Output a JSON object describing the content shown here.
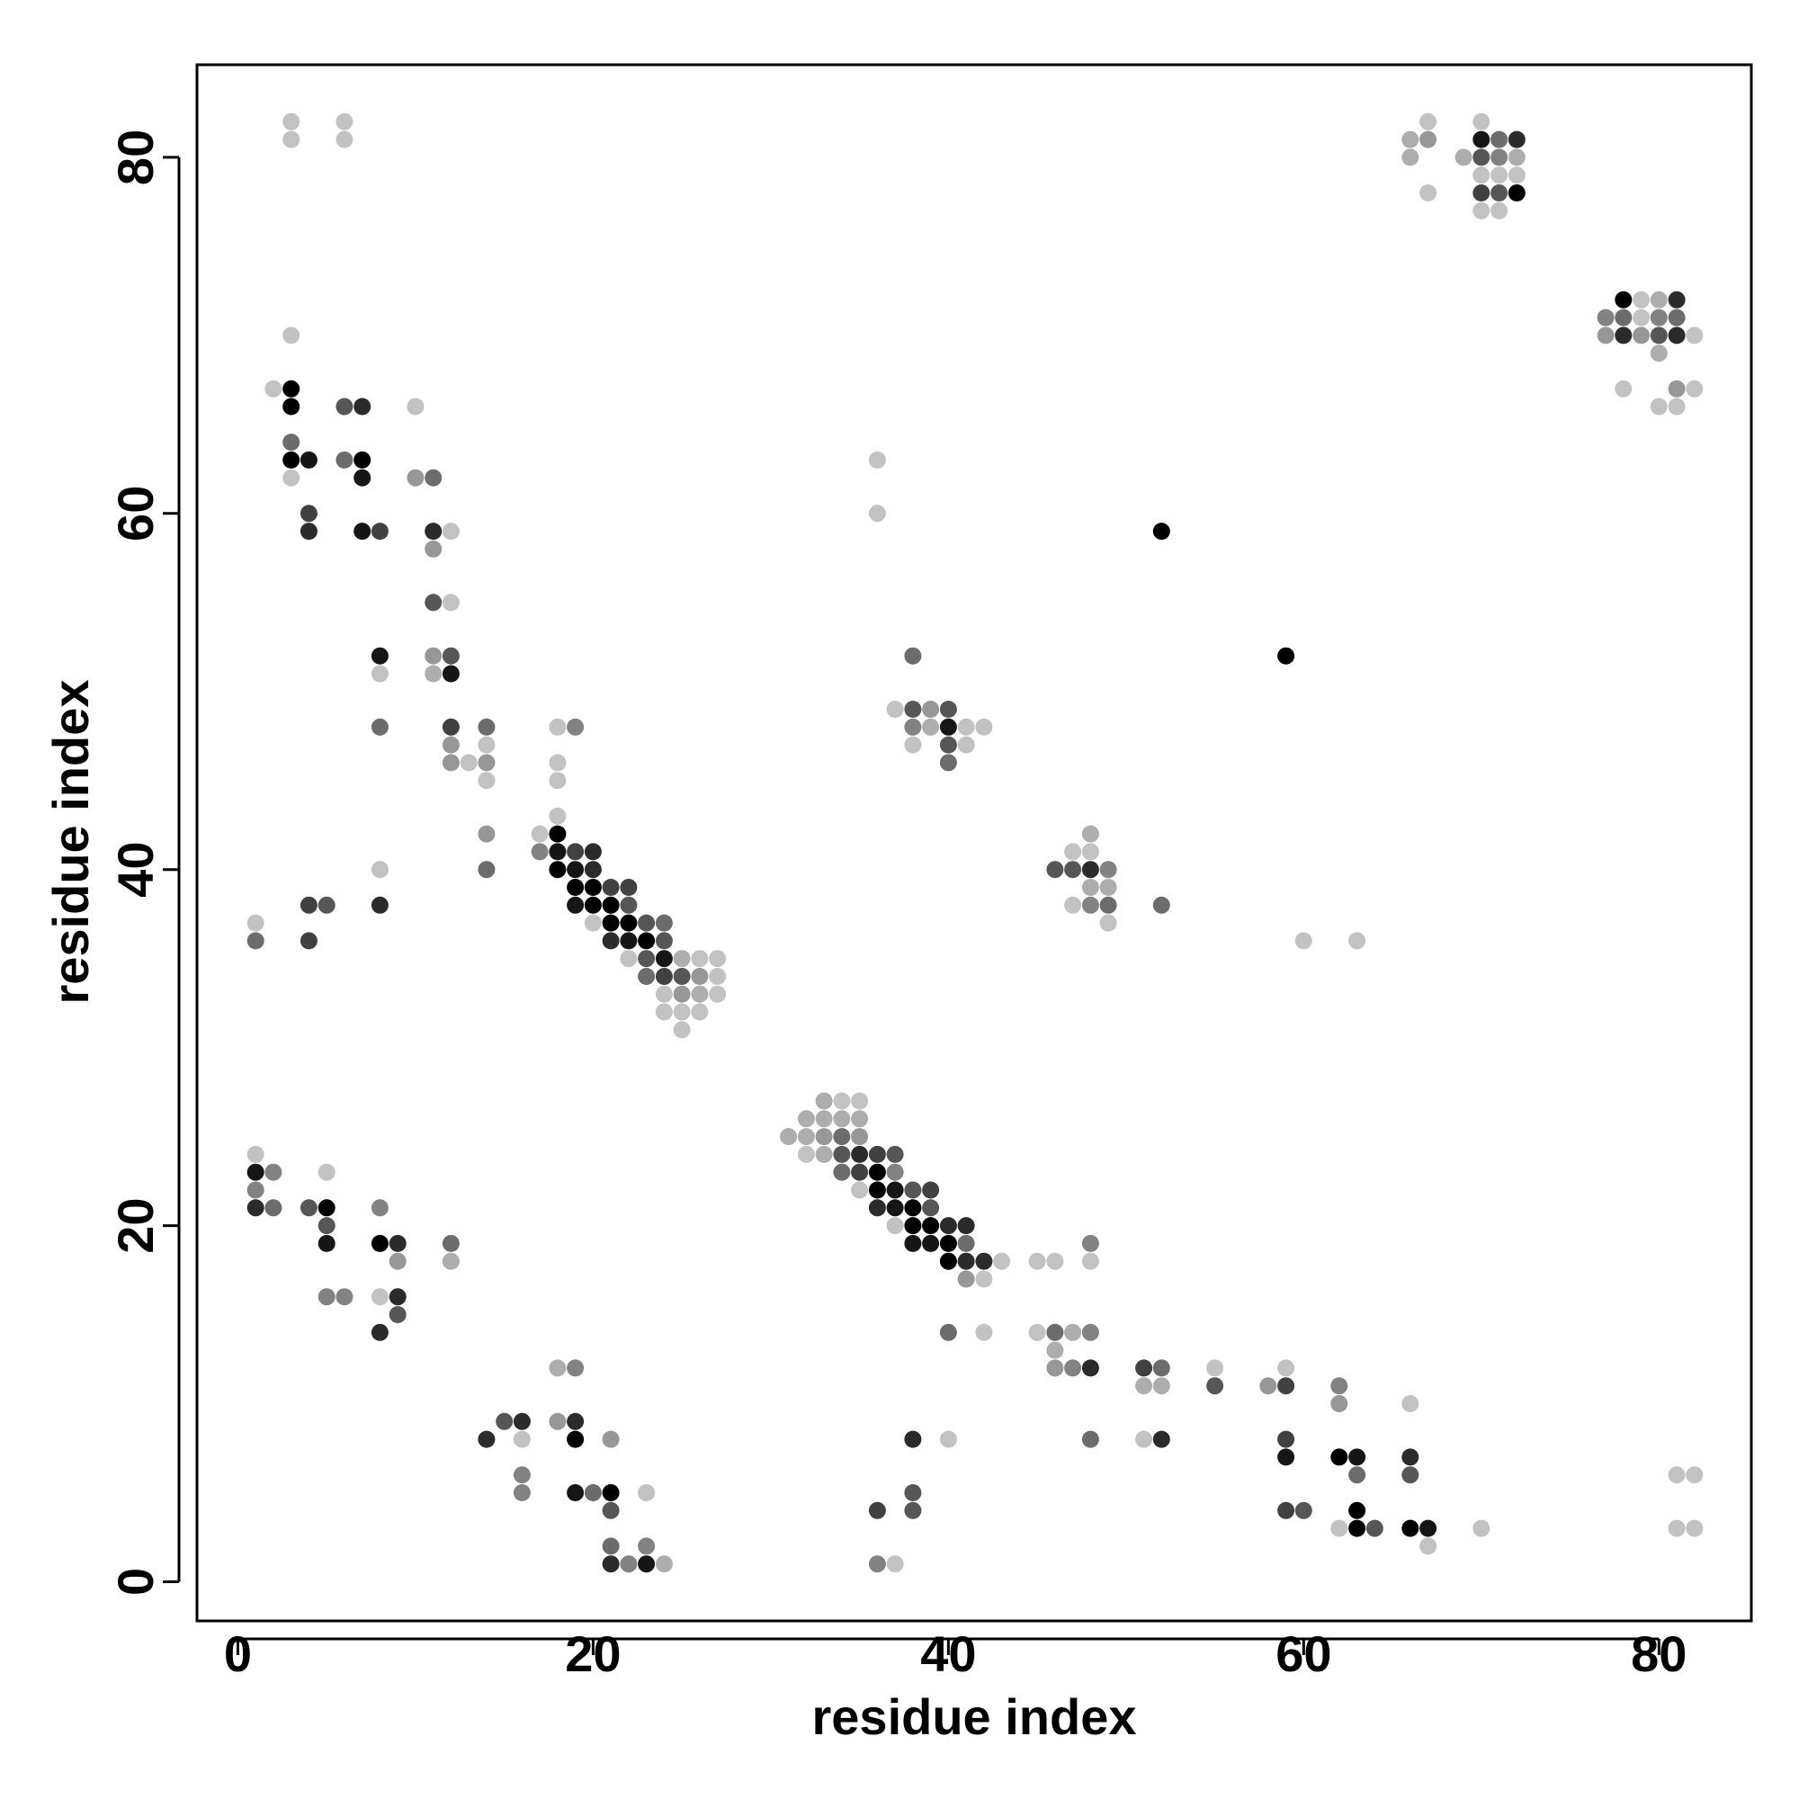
{
  "chart_data": {
    "type": "scatter",
    "title": "",
    "xlabel": "residue index",
    "ylabel": "residue index",
    "xlim": [
      -2.3,
      85.2
    ],
    "ylim": [
      -2.2,
      85.2
    ],
    "xticks": [
      0,
      20,
      40,
      60,
      80
    ],
    "yticks": [
      0,
      20,
      40,
      60,
      80
    ],
    "xtick_labels": [
      "0",
      "20",
      "40",
      "60",
      "80"
    ],
    "ytick_labels": [
      "0",
      "20",
      "40",
      "60",
      "80"
    ],
    "grid": false,
    "legend": "none",
    "color_scale": "grayscale: 0 = light gray (#d8d8d8), 1 = black",
    "points": [
      [
        3,
        82,
        0.1
      ],
      [
        3,
        81,
        0.1
      ],
      [
        6,
        82,
        0.1
      ],
      [
        6,
        81,
        0.1
      ],
      [
        67,
        82,
        0.1
      ],
      [
        66,
        81,
        0.2
      ],
      [
        67,
        81,
        0.3
      ],
      [
        66,
        80,
        0.2
      ],
      [
        67,
        78,
        0.1
      ],
      [
        70,
        82,
        0.1
      ],
      [
        69,
        80,
        0.2
      ],
      [
        70,
        81,
        0.9
      ],
      [
        71,
        81,
        0.5
      ],
      [
        72,
        81,
        0.8
      ],
      [
        70,
        80,
        0.6
      ],
      [
        71,
        80,
        0.4
      ],
      [
        72,
        80,
        0.2
      ],
      [
        70,
        79,
        0.1
      ],
      [
        71,
        79,
        0.1
      ],
      [
        72,
        79,
        0.1
      ],
      [
        70,
        78,
        0.7
      ],
      [
        71,
        78,
        0.6
      ],
      [
        72,
        78,
        1.0
      ],
      [
        70,
        77,
        0.1
      ],
      [
        71,
        77,
        0.1
      ],
      [
        78,
        72,
        1.0
      ],
      [
        79,
        72,
        0.1
      ],
      [
        80,
        72,
        0.2
      ],
      [
        81,
        72,
        0.8
      ],
      [
        77,
        71,
        0.4
      ],
      [
        78,
        71,
        0.5
      ],
      [
        79,
        71,
        0.1
      ],
      [
        80,
        71,
        0.4
      ],
      [
        81,
        71,
        0.5
      ],
      [
        77,
        70,
        0.3
      ],
      [
        78,
        70,
        0.8
      ],
      [
        79,
        70,
        0.3
      ],
      [
        80,
        70,
        0.6
      ],
      [
        81,
        70,
        0.8
      ],
      [
        82,
        70,
        0.1
      ],
      [
        80,
        69,
        0.2
      ],
      [
        78,
        67,
        0.1
      ],
      [
        81,
        67,
        0.3
      ],
      [
        82,
        67,
        0.1
      ],
      [
        80,
        66,
        0.1
      ],
      [
        81,
        66,
        0.1
      ],
      [
        3,
        70,
        0.1
      ],
      [
        2,
        67,
        0.1
      ],
      [
        3,
        67,
        1.0
      ],
      [
        3,
        66,
        1.0
      ],
      [
        6,
        66,
        0.6
      ],
      [
        7,
        66,
        0.8
      ],
      [
        3,
        64,
        0.5
      ],
      [
        3,
        63,
        1.0
      ],
      [
        4,
        63,
        0.9
      ],
      [
        6,
        63,
        0.5
      ],
      [
        7,
        63,
        1.0
      ],
      [
        3,
        62,
        0.1
      ],
      [
        7,
        62,
        0.9
      ],
      [
        10,
        66,
        0.1
      ],
      [
        10,
        62,
        0.3
      ],
      [
        11,
        62,
        0.5
      ],
      [
        4,
        60,
        0.7
      ],
      [
        4,
        59,
        0.8
      ],
      [
        7,
        59,
        0.9
      ],
      [
        8,
        59,
        0.7
      ],
      [
        11,
        59,
        0.8
      ],
      [
        12,
        59,
        0.1
      ],
      [
        11,
        58,
        0.3
      ],
      [
        11,
        55,
        0.6
      ],
      [
        12,
        55,
        0.1
      ],
      [
        8,
        52,
        0.9
      ],
      [
        11,
        52,
        0.3
      ],
      [
        12,
        52,
        0.6
      ],
      [
        8,
        51,
        0.1
      ],
      [
        11,
        51,
        0.2
      ],
      [
        12,
        51,
        0.9
      ],
      [
        8,
        48,
        0.5
      ],
      [
        12,
        48,
        0.7
      ],
      [
        14,
        48,
        0.5
      ],
      [
        12,
        47,
        0.3
      ],
      [
        14,
        47,
        0.1
      ],
      [
        12,
        46,
        0.3
      ],
      [
        13,
        46,
        0.1
      ],
      [
        14,
        46,
        0.3
      ],
      [
        14,
        45,
        0.1
      ],
      [
        14,
        42,
        0.3
      ],
      [
        14,
        40,
        0.5
      ],
      [
        8,
        40,
        0.1
      ],
      [
        4,
        38,
        0.7
      ],
      [
        5,
        38,
        0.6
      ],
      [
        8,
        38,
        0.8
      ],
      [
        1,
        37,
        0.1
      ],
      [
        1,
        36,
        0.5
      ],
      [
        4,
        36,
        0.7
      ],
      [
        18,
        48,
        0.1
      ],
      [
        19,
        48,
        0.4
      ],
      [
        18,
        46,
        0.1
      ],
      [
        18,
        45,
        0.1
      ],
      [
        18,
        43,
        0.1
      ],
      [
        17,
        42,
        0.1
      ],
      [
        18,
        42,
        1.0
      ],
      [
        17,
        41,
        0.4
      ],
      [
        18,
        41,
        0.9
      ],
      [
        19,
        41,
        0.7
      ],
      [
        20,
        41,
        0.8
      ],
      [
        18,
        40,
        1.0
      ],
      [
        19,
        40,
        0.9
      ],
      [
        20,
        40,
        0.8
      ],
      [
        19,
        39,
        1.0
      ],
      [
        20,
        39,
        1.0
      ],
      [
        21,
        39,
        0.7
      ],
      [
        22,
        39,
        0.7
      ],
      [
        19,
        38,
        0.9
      ],
      [
        20,
        38,
        1.0
      ],
      [
        21,
        38,
        1.0
      ],
      [
        22,
        38,
        0.6
      ],
      [
        20,
        37,
        0.1
      ],
      [
        21,
        37,
        1.0
      ],
      [
        22,
        37,
        1.0
      ],
      [
        23,
        37,
        0.6
      ],
      [
        24,
        37,
        0.5
      ],
      [
        21,
        36,
        0.8
      ],
      [
        22,
        36,
        0.9
      ],
      [
        23,
        36,
        1.0
      ],
      [
        24,
        36,
        0.6
      ],
      [
        22,
        35,
        0.1
      ],
      [
        23,
        35,
        0.6
      ],
      [
        24,
        35,
        0.9
      ],
      [
        25,
        35,
        0.2
      ],
      [
        26,
        35,
        0.1
      ],
      [
        27,
        35,
        0.1
      ],
      [
        23,
        34,
        0.5
      ],
      [
        24,
        34,
        0.7
      ],
      [
        25,
        34,
        0.6
      ],
      [
        26,
        34,
        0.3
      ],
      [
        27,
        34,
        0.1
      ],
      [
        24,
        33,
        0.1
      ],
      [
        25,
        33,
        0.3
      ],
      [
        26,
        33,
        0.2
      ],
      [
        27,
        33,
        0.1
      ],
      [
        24,
        32,
        0.1
      ],
      [
        25,
        32,
        0.1
      ],
      [
        26,
        32,
        0.1
      ],
      [
        25,
        31,
        0.1
      ],
      [
        36,
        63,
        0.1
      ],
      [
        36,
        60,
        0.1
      ],
      [
        52,
        59,
        1.0
      ],
      [
        59,
        52,
        1.0
      ],
      [
        38,
        52,
        0.5
      ],
      [
        37,
        49,
        0.1
      ],
      [
        38,
        49,
        0.6
      ],
      [
        39,
        49,
        0.3
      ],
      [
        40,
        49,
        0.6
      ],
      [
        38,
        48,
        0.4
      ],
      [
        39,
        48,
        0.2
      ],
      [
        40,
        48,
        0.9
      ],
      [
        41,
        48,
        0.1
      ],
      [
        42,
        48,
        0.1
      ],
      [
        38,
        47,
        0.1
      ],
      [
        40,
        47,
        0.6
      ],
      [
        41,
        47,
        0.1
      ],
      [
        40,
        46,
        0.5
      ],
      [
        48,
        42,
        0.2
      ],
      [
        47,
        41,
        0.1
      ],
      [
        48,
        41,
        0.1
      ],
      [
        46,
        40,
        0.6
      ],
      [
        47,
        40,
        0.6
      ],
      [
        48,
        40,
        0.8
      ],
      [
        49,
        40,
        0.4
      ],
      [
        48,
        39,
        0.2
      ],
      [
        49,
        39,
        0.2
      ],
      [
        47,
        38,
        0.1
      ],
      [
        48,
        38,
        0.4
      ],
      [
        49,
        38,
        0.5
      ],
      [
        49,
        37,
        0.1
      ],
      [
        52,
        38,
        0.5
      ],
      [
        60,
        36,
        0.1
      ],
      [
        63,
        36,
        0.1
      ],
      [
        33,
        27,
        0.2
      ],
      [
        34,
        27,
        0.1
      ],
      [
        35,
        27,
        0.1
      ],
      [
        32,
        26,
        0.2
      ],
      [
        33,
        26,
        0.2
      ],
      [
        34,
        26,
        0.2
      ],
      [
        35,
        26,
        0.2
      ],
      [
        31,
        25,
        0.2
      ],
      [
        32,
        25,
        0.2
      ],
      [
        33,
        25,
        0.3
      ],
      [
        34,
        25,
        0.5
      ],
      [
        35,
        25,
        0.3
      ],
      [
        32,
        24,
        0.1
      ],
      [
        33,
        24,
        0.2
      ],
      [
        34,
        24,
        0.6
      ],
      [
        35,
        24,
        0.8
      ],
      [
        36,
        24,
        0.7
      ],
      [
        37,
        24,
        0.6
      ],
      [
        34,
        23,
        0.5
      ],
      [
        35,
        23,
        0.7
      ],
      [
        36,
        23,
        1.0
      ],
      [
        37,
        23,
        0.4
      ],
      [
        35,
        22,
        0.1
      ],
      [
        36,
        22,
        1.0
      ],
      [
        37,
        22,
        0.9
      ],
      [
        38,
        22,
        0.6
      ],
      [
        39,
        22,
        0.7
      ],
      [
        36,
        21,
        0.8
      ],
      [
        37,
        21,
        0.9
      ],
      [
        38,
        21,
        1.0
      ],
      [
        39,
        21,
        0.6
      ],
      [
        37,
        20,
        0.1
      ],
      [
        38,
        20,
        1.0
      ],
      [
        39,
        20,
        1.0
      ],
      [
        40,
        20,
        0.8
      ],
      [
        41,
        20,
        0.8
      ],
      [
        38,
        19,
        0.9
      ],
      [
        39,
        19,
        0.9
      ],
      [
        40,
        19,
        1.0
      ],
      [
        41,
        19,
        0.5
      ],
      [
        40,
        18,
        1.0
      ],
      [
        41,
        18,
        0.8
      ],
      [
        42,
        18,
        0.8
      ],
      [
        43,
        18,
        0.1
      ],
      [
        41,
        17,
        0.3
      ],
      [
        42,
        17,
        0.1
      ],
      [
        45,
        18,
        0.1
      ],
      [
        46,
        18,
        0.1
      ],
      [
        48,
        19,
        0.4
      ],
      [
        48,
        18,
        0.1
      ],
      [
        40,
        14,
        0.5
      ],
      [
        42,
        14,
        0.1
      ],
      [
        45,
        14,
        0.1
      ],
      [
        46,
        14,
        0.5
      ],
      [
        47,
        14,
        0.2
      ],
      [
        48,
        14,
        0.4
      ],
      [
        46,
        13,
        0.2
      ],
      [
        46,
        12,
        0.3
      ],
      [
        47,
        12,
        0.4
      ],
      [
        48,
        12,
        0.8
      ],
      [
        48,
        8,
        0.5
      ],
      [
        51,
        12,
        0.7
      ],
      [
        52,
        12,
        0.5
      ],
      [
        51,
        11,
        0.2
      ],
      [
        52,
        11,
        0.2
      ],
      [
        55,
        12,
        0.1
      ],
      [
        55,
        11,
        0.6
      ],
      [
        51,
        8,
        0.1
      ],
      [
        52,
        8,
        0.8
      ],
      [
        58,
        11,
        0.3
      ],
      [
        59,
        11,
        0.7
      ],
      [
        59,
        12,
        0.1
      ],
      [
        62,
        11,
        0.4
      ],
      [
        62,
        10,
        0.3
      ],
      [
        66,
        10,
        0.1
      ],
      [
        59,
        8,
        0.7
      ],
      [
        59,
        7,
        0.9
      ],
      [
        62,
        7,
        1.0
      ],
      [
        63,
        7,
        0.9
      ],
      [
        63,
        6,
        0.5
      ],
      [
        66,
        7,
        0.8
      ],
      [
        66,
        6,
        0.6
      ],
      [
        59,
        4,
        0.7
      ],
      [
        60,
        4,
        0.6
      ],
      [
        63,
        4,
        1.0
      ],
      [
        62,
        3,
        0.1
      ],
      [
        63,
        3,
        1.0
      ],
      [
        64,
        3,
        0.6
      ],
      [
        66,
        3,
        1.0
      ],
      [
        67,
        3,
        0.9
      ],
      [
        67,
        2,
        0.1
      ],
      [
        70,
        3,
        0.1
      ],
      [
        81,
        6,
        0.1
      ],
      [
        82,
        6,
        0.1
      ],
      [
        81,
        3,
        0.1
      ],
      [
        82,
        3,
        0.1
      ],
      [
        38,
        8,
        0.8
      ],
      [
        40,
        8,
        0.1
      ],
      [
        38,
        5,
        0.6
      ],
      [
        38,
        4,
        0.6
      ],
      [
        36,
        4,
        0.7
      ],
      [
        36,
        1,
        0.4
      ],
      [
        37,
        1,
        0.1
      ],
      [
        1,
        24,
        0.1
      ],
      [
        1,
        23,
        0.9
      ],
      [
        2,
        23,
        0.4
      ],
      [
        1,
        22,
        0.4
      ],
      [
        1,
        21,
        0.8
      ],
      [
        2,
        21,
        0.5
      ],
      [
        5,
        23,
        0.1
      ],
      [
        4,
        21,
        0.6
      ],
      [
        5,
        21,
        1.0
      ],
      [
        5,
        20,
        0.6
      ],
      [
        5,
        19,
        0.9
      ],
      [
        8,
        21,
        0.4
      ],
      [
        8,
        19,
        1.0
      ],
      [
        9,
        19,
        0.8
      ],
      [
        9,
        18,
        0.3
      ],
      [
        12,
        19,
        0.5
      ],
      [
        12,
        18,
        0.2
      ],
      [
        5,
        16,
        0.4
      ],
      [
        6,
        16,
        0.4
      ],
      [
        8,
        16,
        0.1
      ],
      [
        9,
        16,
        0.8
      ],
      [
        9,
        15,
        0.6
      ],
      [
        8,
        14,
        0.8
      ],
      [
        14,
        8,
        0.8
      ],
      [
        15,
        9,
        0.6
      ],
      [
        16,
        9,
        0.8
      ],
      [
        16,
        8,
        0.1
      ],
      [
        16,
        6,
        0.4
      ],
      [
        16,
        5,
        0.4
      ],
      [
        18,
        12,
        0.2
      ],
      [
        19,
        12,
        0.4
      ],
      [
        18,
        9,
        0.3
      ],
      [
        19,
        9,
        0.8
      ],
      [
        19,
        8,
        1.0
      ],
      [
        21,
        8,
        0.3
      ],
      [
        19,
        5,
        0.9
      ],
      [
        20,
        5,
        0.5
      ],
      [
        21,
        5,
        1.0
      ],
      [
        21,
        4,
        0.6
      ],
      [
        23,
        5,
        0.1
      ],
      [
        21,
        2,
        0.5
      ],
      [
        23,
        2,
        0.4
      ],
      [
        21,
        1,
        0.8
      ],
      [
        22,
        1,
        0.4
      ],
      [
        23,
        1,
        0.9
      ],
      [
        24,
        1,
        0.2
      ]
    ]
  }
}
